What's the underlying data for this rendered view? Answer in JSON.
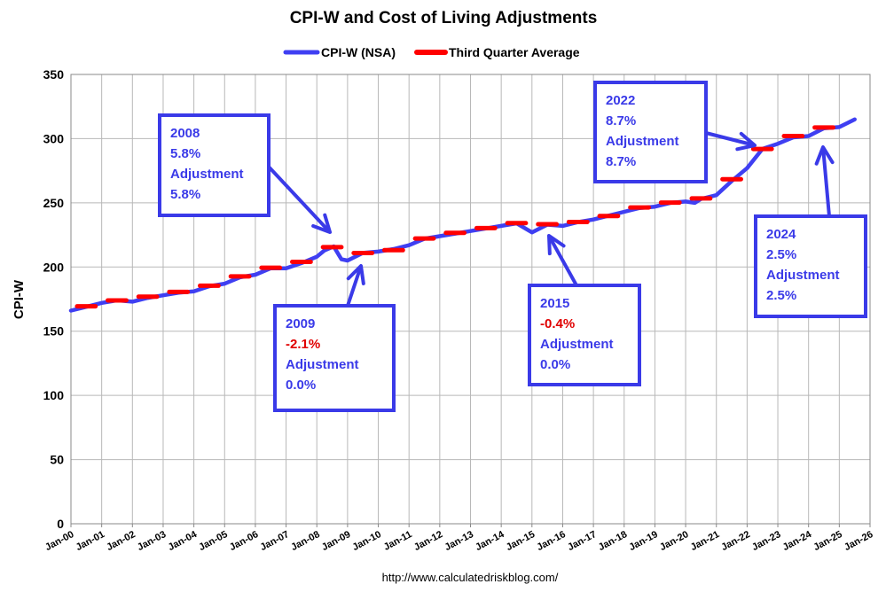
{
  "chart_data": {
    "type": "line",
    "title": "CPI-W and Cost of Living Adjustments",
    "ylabel": "CPI-W",
    "xlabel": "",
    "ylim": [
      0,
      350
    ],
    "yticks": [
      0,
      50,
      100,
      150,
      200,
      250,
      300,
      350
    ],
    "xlim": [
      2000,
      2026
    ],
    "x_tick_labels": [
      "Jan-00",
      "Jan-01",
      "Jan-02",
      "Jan-03",
      "Jan-04",
      "Jan-05",
      "Jan-06",
      "Jan-07",
      "Jan-08",
      "Jan-09",
      "Jan-10",
      "Jan-11",
      "Jan-12",
      "Jan-13",
      "Jan-14",
      "Jan-15",
      "Jan-16",
      "Jan-17",
      "Jan-18",
      "Jan-19",
      "Jan-20",
      "Jan-21",
      "Jan-22",
      "Jan-23",
      "Jan-24",
      "Jan-25",
      "Jan-26"
    ],
    "grid": true,
    "legend_position": "top-center",
    "series": [
      {
        "name": "CPI-W (NSA)",
        "color": "#3f3ff2",
        "x": [
          2000.0,
          2000.5,
          2001.0,
          2001.5,
          2002.0,
          2002.5,
          2003.0,
          2003.5,
          2004.0,
          2004.5,
          2005.0,
          2005.5,
          2006.0,
          2006.5,
          2007.0,
          2007.5,
          2008.0,
          2008.25,
          2008.55,
          2008.8,
          2009.0,
          2009.5,
          2010.0,
          2010.5,
          2011.0,
          2011.5,
          2012.0,
          2012.5,
          2013.0,
          2013.5,
          2014.0,
          2014.5,
          2015.0,
          2015.5,
          2016.0,
          2016.5,
          2017.0,
          2017.5,
          2018.0,
          2018.5,
          2019.0,
          2019.5,
          2020.0,
          2020.3,
          2020.5,
          2021.0,
          2021.5,
          2022.0,
          2022.5,
          2023.0,
          2023.5,
          2024.0,
          2024.5,
          2025.0,
          2025.5
        ],
        "y": [
          166,
          169,
          172,
          174,
          173,
          176,
          178,
          180,
          181,
          185,
          187,
          192,
          194,
          199,
          199,
          203,
          208,
          213,
          216,
          206,
          205,
          211,
          212,
          214,
          217,
          222,
          224,
          226,
          228,
          230,
          232,
          234,
          227,
          233,
          232,
          235,
          237,
          240,
          243,
          246,
          247,
          250,
          251,
          250,
          253,
          256,
          267,
          277,
          292,
          296,
          301,
          302,
          308,
          309,
          315
        ]
      },
      {
        "name": "Third Quarter Average",
        "color": "#ff0000",
        "x": [
          2000.5,
          2001.5,
          2002.5,
          2003.5,
          2004.5,
          2005.5,
          2006.5,
          2007.5,
          2008.5,
          2009.5,
          2010.5,
          2011.5,
          2012.5,
          2013.5,
          2014.5,
          2015.5,
          2016.5,
          2017.5,
          2018.5,
          2019.5,
          2020.5,
          2021.5,
          2022.5,
          2023.5,
          2024.5
        ],
        "y": [
          169.4,
          174.0,
          176.9,
          180.6,
          185.4,
          192.7,
          199.4,
          204.0,
          215.5,
          210.9,
          213.1,
          222.2,
          226.6,
          230.3,
          234.2,
          233.3,
          235.1,
          239.7,
          246.4,
          250.2,
          253.4,
          268.4,
          291.9,
          302.0,
          308.7
        ]
      }
    ],
    "annotations": [
      {
        "lines": [
          {
            "text": "2008",
            "red": false
          },
          {
            "text": "5.8%",
            "red": false
          },
          {
            "text": "Adjustment",
            "red": false
          },
          {
            "text": "5.8%",
            "red": false
          }
        ]
      },
      {
        "lines": [
          {
            "text": "2009",
            "red": false
          },
          {
            "text": "-2.1%",
            "red": true
          },
          {
            "text": "Adjustment",
            "red": false
          },
          {
            "text": "0.0%",
            "red": false
          }
        ]
      },
      {
        "lines": [
          {
            "text": "2015",
            "red": false
          },
          {
            "text": "-0.4%",
            "red": true
          },
          {
            "text": "Adjustment",
            "red": false
          },
          {
            "text": "0.0%",
            "red": false
          }
        ]
      },
      {
        "lines": [
          {
            "text": "2022",
            "red": false
          },
          {
            "text": "8.7%",
            "red": false
          },
          {
            "text": "Adjustment",
            "red": false
          },
          {
            "text": "8.7%",
            "red": false
          }
        ]
      },
      {
        "lines": [
          {
            "text": "2024",
            "red": false
          },
          {
            "text": "2.5%",
            "red": false
          },
          {
            "text": "Adjustment",
            "red": false
          },
          {
            "text": "2.5%",
            "red": false
          }
        ]
      }
    ],
    "source": "http://www.calculatedriskblog.com/"
  }
}
